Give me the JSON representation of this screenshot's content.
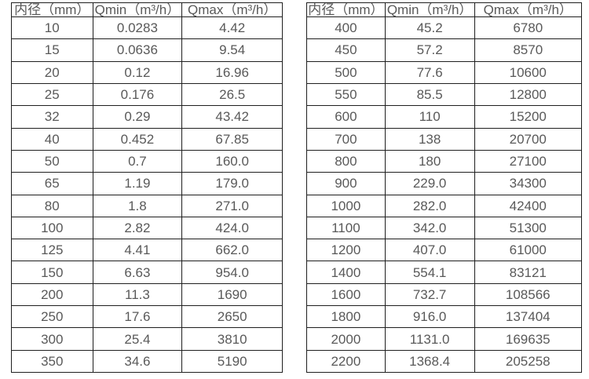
{
  "colors": {
    "background": "#ffffff",
    "border": "#1f1f1f",
    "text": "#595959"
  },
  "tables": [
    {
      "name": "flow-table-small-diameters",
      "headers": [
        "内径（mm）",
        "Qmin（m³/h）",
        "Qmax（m³/h）"
      ],
      "rows": [
        [
          "10",
          "0.0283",
          "4.42"
        ],
        [
          "15",
          "0.0636",
          "9.54"
        ],
        [
          "20",
          "0.12",
          "16.96"
        ],
        [
          "25",
          "0.176",
          "26.5"
        ],
        [
          "32",
          "0.29",
          "43.42"
        ],
        [
          "40",
          "0.452",
          "67.85"
        ],
        [
          "50",
          "0.7",
          "160.0"
        ],
        [
          "65",
          "1.19",
          "179.0"
        ],
        [
          "80",
          "1.8",
          "271.0"
        ],
        [
          "100",
          "2.82",
          "424.0"
        ],
        [
          "125",
          "4.41",
          "662.0"
        ],
        [
          "150",
          "6.63",
          "954.0"
        ],
        [
          "200",
          "11.3",
          "1690"
        ],
        [
          "250",
          "17.6",
          "2650"
        ],
        [
          "300",
          "25.4",
          "3810"
        ],
        [
          "350",
          "34.6",
          "5190"
        ]
      ]
    },
    {
      "name": "flow-table-large-diameters",
      "headers": [
        "内径（mm）",
        "Qmin（m³/h）",
        "Qmax（m³/h）"
      ],
      "rows": [
        [
          "400",
          "45.2",
          "6780"
        ],
        [
          "450",
          "57.2",
          "8570"
        ],
        [
          "500",
          "77.6",
          "10600"
        ],
        [
          "550",
          "85.5",
          "12800"
        ],
        [
          "600",
          "110",
          "15200"
        ],
        [
          "700",
          "138",
          "20700"
        ],
        [
          "800",
          "180",
          "27100"
        ],
        [
          "900",
          "229.0",
          "34300"
        ],
        [
          "1000",
          "282.0",
          "42400"
        ],
        [
          "1100",
          "342.0",
          "51300"
        ],
        [
          "1200",
          "407.0",
          "61000"
        ],
        [
          "1400",
          "554.1",
          "83121"
        ],
        [
          "1600",
          "732.7",
          "108566"
        ],
        [
          "1800",
          "916.0",
          "137404"
        ],
        [
          "2000",
          "1131.0",
          "169635"
        ],
        [
          "2200",
          "1368.4",
          "205258"
        ]
      ]
    }
  ]
}
